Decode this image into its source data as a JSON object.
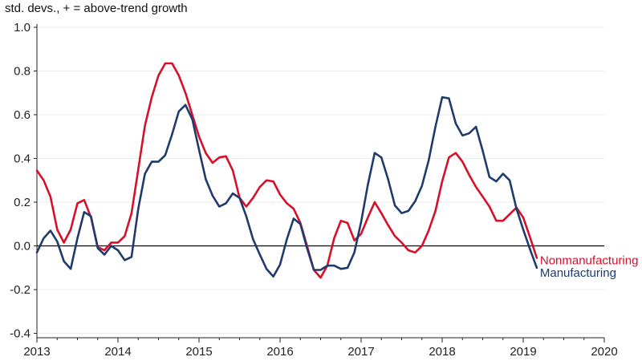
{
  "chart_data": {
    "type": "line",
    "ylabel": "std. devs., + = above-trend growth",
    "xlim": [
      2013,
      2020
    ],
    "ylim": [
      -0.42,
      1.0
    ],
    "y_ticks": [
      -0.4,
      -0.2,
      0.0,
      0.2,
      0.4,
      0.6,
      0.8,
      1.0
    ],
    "y_tick_labels": [
      "-0.4",
      "-0.2",
      "0.0",
      "0.2",
      "0.4",
      "0.6",
      "0.8",
      "1.0"
    ],
    "x_ticks": [
      2013,
      2014,
      2015,
      2016,
      2017,
      2018,
      2019,
      2020
    ],
    "x_tick_labels": [
      "2013",
      "2014",
      "2015",
      "2016",
      "2017",
      "2018",
      "2019",
      "2020"
    ],
    "grid": true,
    "zero_line": true,
    "series": [
      {
        "name": "Nonmanufacturing",
        "color": "#d7102a",
        "x": [
          2013.0,
          2013.083,
          2013.167,
          2013.25,
          2013.333,
          2013.417,
          2013.5,
          2013.583,
          2013.667,
          2013.75,
          2013.833,
          2013.917,
          2014.0,
          2014.083,
          2014.167,
          2014.25,
          2014.333,
          2014.417,
          2014.5,
          2014.583,
          2014.667,
          2014.75,
          2014.833,
          2014.917,
          2015.0,
          2015.083,
          2015.167,
          2015.25,
          2015.333,
          2015.417,
          2015.5,
          2015.583,
          2015.667,
          2015.75,
          2015.833,
          2015.917,
          2016.0,
          2016.083,
          2016.167,
          2016.25,
          2016.333,
          2016.417,
          2016.5,
          2016.583,
          2016.667,
          2016.75,
          2016.833,
          2016.917,
          2017.0,
          2017.083,
          2017.167,
          2017.25,
          2017.333,
          2017.417,
          2017.5,
          2017.583,
          2017.667,
          2017.75,
          2017.833,
          2017.917,
          2018.0,
          2018.083,
          2018.167,
          2018.25,
          2018.333,
          2018.417,
          2018.5,
          2018.583,
          2018.667,
          2018.75,
          2018.833,
          2018.917,
          2019.0,
          2019.083,
          2019.167
        ],
        "values": [
          0.345,
          0.3,
          0.225,
          0.075,
          0.015,
          0.075,
          0.195,
          0.21,
          0.13,
          -0.005,
          -0.02,
          0.015,
          0.015,
          0.045,
          0.15,
          0.35,
          0.55,
          0.68,
          0.78,
          0.835,
          0.835,
          0.78,
          0.7,
          0.6,
          0.5,
          0.425,
          0.38,
          0.405,
          0.41,
          0.345,
          0.22,
          0.18,
          0.22,
          0.27,
          0.3,
          0.295,
          0.235,
          0.195,
          0.17,
          0.105,
          0.0,
          -0.11,
          -0.145,
          -0.09,
          0.035,
          0.115,
          0.105,
          0.025,
          0.055,
          0.13,
          0.2,
          0.15,
          0.095,
          0.045,
          0.015,
          -0.02,
          -0.03,
          0.0,
          0.07,
          0.16,
          0.295,
          0.405,
          0.425,
          0.385,
          0.325,
          0.27,
          0.225,
          0.18,
          0.115,
          0.115,
          0.145,
          0.175,
          0.13,
          0.04,
          -0.055
        ]
      },
      {
        "name": "Manufacturing",
        "color": "#1f3b6e",
        "x": [
          2013.0,
          2013.083,
          2013.167,
          2013.25,
          2013.333,
          2013.417,
          2013.5,
          2013.583,
          2013.667,
          2013.75,
          2013.833,
          2013.917,
          2014.0,
          2014.083,
          2014.167,
          2014.25,
          2014.333,
          2014.417,
          2014.5,
          2014.583,
          2014.667,
          2014.75,
          2014.833,
          2014.917,
          2015.0,
          2015.083,
          2015.167,
          2015.25,
          2015.333,
          2015.417,
          2015.5,
          2015.583,
          2015.667,
          2015.75,
          2015.833,
          2015.917,
          2016.0,
          2016.083,
          2016.167,
          2016.25,
          2016.333,
          2016.417,
          2016.5,
          2016.583,
          2016.667,
          2016.75,
          2016.833,
          2016.917,
          2017.0,
          2017.083,
          2017.167,
          2017.25,
          2017.333,
          2017.417,
          2017.5,
          2017.583,
          2017.667,
          2017.75,
          2017.833,
          2017.917,
          2018.0,
          2018.083,
          2018.167,
          2018.25,
          2018.333,
          2018.417,
          2018.5,
          2018.583,
          2018.667,
          2018.75,
          2018.833,
          2018.917,
          2019.0,
          2019.083,
          2019.167
        ],
        "values": [
          -0.03,
          0.035,
          0.07,
          0.02,
          -0.07,
          -0.105,
          0.035,
          0.155,
          0.135,
          -0.01,
          -0.04,
          0.0,
          -0.02,
          -0.065,
          -0.05,
          0.17,
          0.33,
          0.385,
          0.385,
          0.415,
          0.51,
          0.615,
          0.645,
          0.58,
          0.44,
          0.305,
          0.23,
          0.18,
          0.195,
          0.24,
          0.22,
          0.135,
          0.03,
          -0.04,
          -0.105,
          -0.14,
          -0.085,
          0.03,
          0.125,
          0.1,
          -0.01,
          -0.11,
          -0.11,
          -0.09,
          -0.09,
          -0.105,
          -0.1,
          -0.03,
          0.11,
          0.28,
          0.425,
          0.405,
          0.305,
          0.185,
          0.15,
          0.16,
          0.205,
          0.275,
          0.39,
          0.545,
          0.68,
          0.675,
          0.56,
          0.505,
          0.515,
          0.545,
          0.435,
          0.315,
          0.295,
          0.33,
          0.3,
          0.17,
          0.075,
          -0.015,
          -0.1
        ]
      }
    ]
  }
}
